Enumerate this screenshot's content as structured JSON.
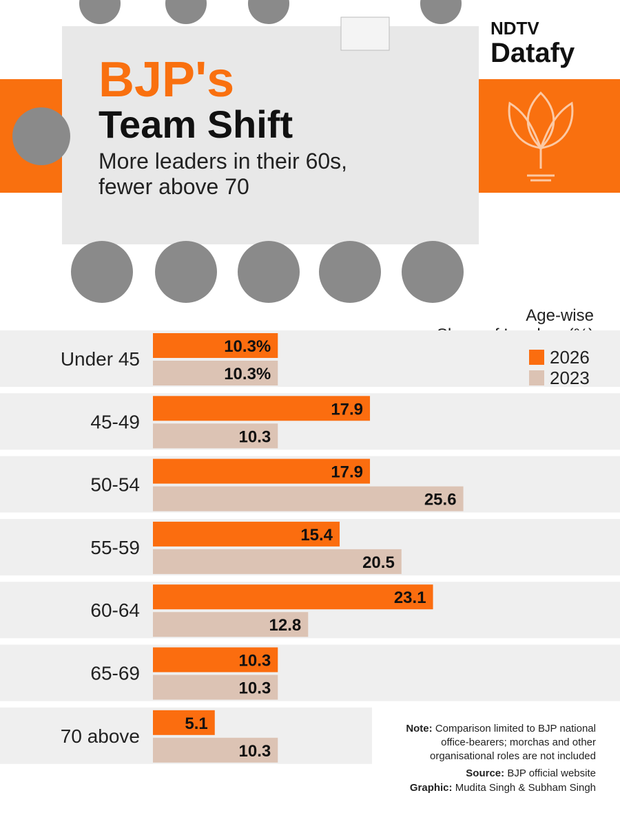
{
  "chart_data": {
    "type": "bar",
    "title": [
      "BJP's",
      "Team Shift"
    ],
    "subtitle": [
      "More leaders in their 60s,",
      "fewer above 70"
    ],
    "brand": [
      "NDTV",
      "Datafy"
    ],
    "legend_title": [
      "Age-wise",
      "Share of Leaders (%)"
    ],
    "categories": [
      "Under 45",
      "45-49",
      "50-54",
      "55-59",
      "60-64",
      "65-69",
      "70 above"
    ],
    "series": [
      {
        "name": "2026",
        "color": "#fb6d0f",
        "values": [
          10.3,
          17.9,
          17.9,
          15.4,
          23.1,
          10.3,
          5.1
        ],
        "value_labels": [
          "10.3%",
          "17.9",
          "17.9",
          "15.4",
          "23.1",
          "10.3",
          "5.1"
        ]
      },
      {
        "name": "2023",
        "color": "#dcc3b4",
        "values": [
          10.3,
          10.3,
          25.6,
          20.5,
          12.8,
          10.3,
          10.3
        ],
        "value_labels": [
          "10.3%",
          "10.3",
          "25.6",
          "20.5",
          "12.8",
          "10.3",
          "10.3"
        ]
      }
    ],
    "note": {
      "label": "Note:",
      "lines": [
        "Comparison limited to BJP national",
        "office-bearers; morchas and other",
        "organisational roles are not included"
      ]
    },
    "source": {
      "label": "Source:",
      "text": "BJP official website"
    },
    "credit": {
      "label": "Graphic:",
      "text": "Mudita Singh & Subham Singh"
    }
  }
}
